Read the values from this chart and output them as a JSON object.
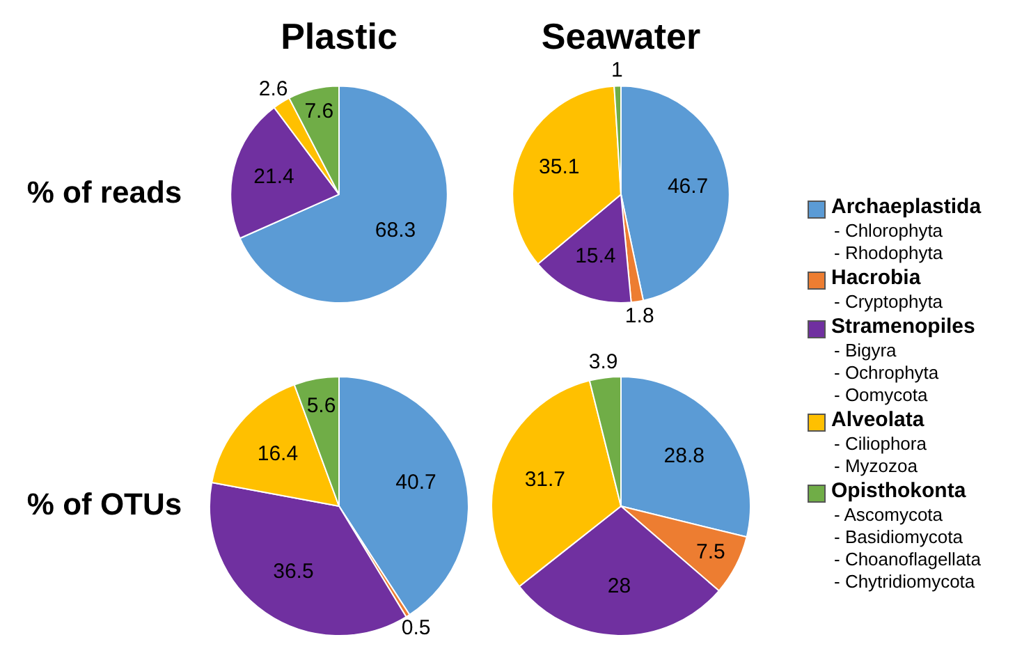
{
  "chart_data": [
    {
      "type": "pie",
      "title": "Plastic",
      "ylabel": "% of reads",
      "categories": [
        null,
        null,
        null,
        null,
        null
      ],
      "values": [
        68.3,
        0,
        21.4,
        2.6,
        7.6
      ],
      "value_labels": [
        "68.3",
        null,
        "21.4",
        "2.6",
        "7.6"
      ],
      "colors": [
        "#5b9bd5",
        "#ed7d31",
        "#7030a0",
        "#ffc000",
        "#70ad47"
      ]
    },
    {
      "type": "pie",
      "title": "Seawater",
      "categories": [
        "Archaeplastida\n- Chlorophyta\n- Rhodophyta",
        "Hacrobia\n- Cryptophyta",
        "Stramenopiles\n- Bigyra\n- Ochrophyta\n- Oomycota",
        "Alveolata\n- Ciliophora\n- Myzozoa",
        "Opisthokonta\n- Ascomycota\n- Basidiomycota\n- Choanoflagellata\n- Chytridiomycota"
      ],
      "values": [
        46.7,
        1.8,
        15.4,
        35.1,
        1
      ],
      "value_labels": [
        "46.7",
        "1.8",
        "15.4",
        "35.1",
        "1"
      ],
      "colors": [
        "#5b9bd5",
        "#ed7d31",
        "#7030a0",
        "#ffc000",
        "#70ad47"
      ],
      "legend": "right"
    },
    {
      "type": "pie",
      "ylabel": "% of OTUs",
      "categories": [
        null,
        null,
        null,
        null,
        null
      ],
      "values": [
        40.7,
        0.5,
        36.5,
        16.4,
        5.6
      ],
      "value_labels": [
        "40.7",
        "0.5",
        "36.5",
        "16.4",
        "5.6"
      ],
      "colors": [
        "#5b9bd5",
        "#ed7d31",
        "#7030a0",
        "#ffc000",
        "#70ad47"
      ]
    },
    {
      "type": "pie",
      "categories": [
        null,
        null,
        null,
        null,
        null
      ],
      "values": [
        28.8,
        7.5,
        28,
        31.7,
        3.9
      ],
      "value_labels": [
        "28.8",
        "7.5",
        "28",
        "31.7",
        "3.9"
      ],
      "colors": [
        "#5b9bd5",
        "#ed7d31",
        "#7030a0",
        "#ffc000",
        "#70ad47"
      ]
    }
  ]
}
